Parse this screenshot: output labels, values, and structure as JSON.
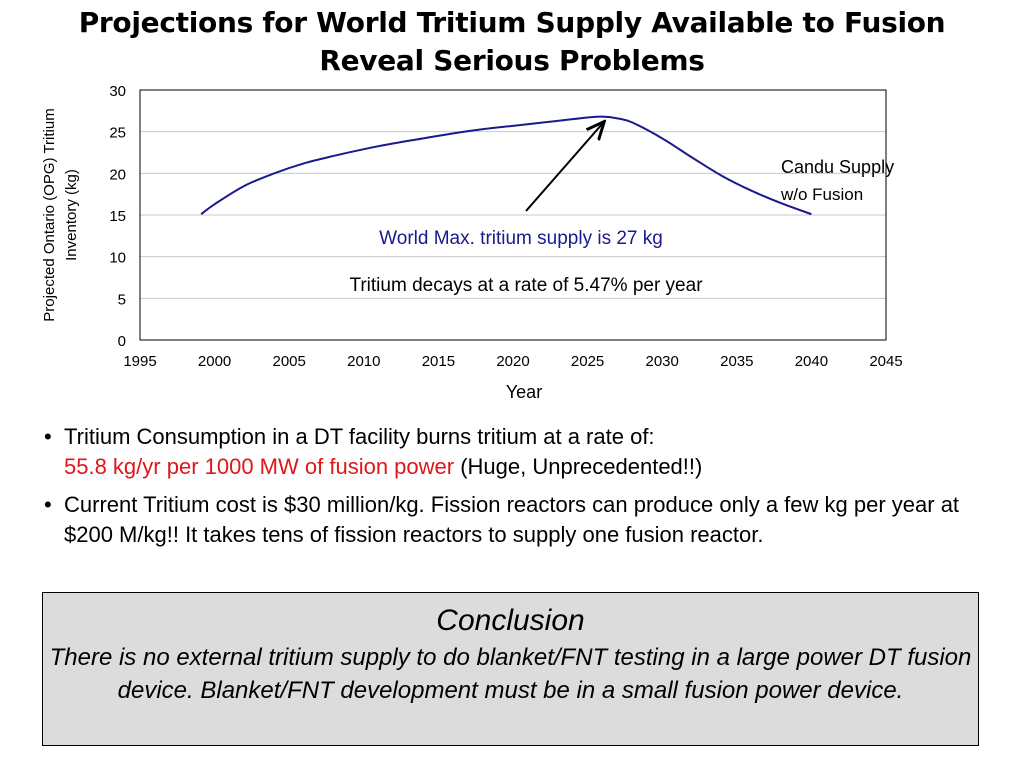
{
  "slide": {
    "title_line1": "Projections for World Tritium Supply Available to Fusion",
    "title_line2": "Reveal Serious Problems"
  },
  "chart_data": {
    "type": "line",
    "ylabel_line1": "Projected Ontario (OPG) Tritium",
    "ylabel_line2": "Inventory (kg)",
    "xlabel": "Year",
    "xlim": [
      1995,
      2045
    ],
    "ylim": [
      0,
      30
    ],
    "x_ticks": [
      1995,
      2000,
      2005,
      2010,
      2015,
      2020,
      2025,
      2030,
      2035,
      2040,
      2045
    ],
    "y_ticks": [
      0,
      5,
      10,
      15,
      20,
      25,
      30
    ],
    "grid": "horizontal",
    "series": [
      {
        "color": "#1a1a8c",
        "x": [
          1999.1,
          2000,
          2002,
          2004,
          2006,
          2008,
          2010,
          2012,
          2014,
          2016,
          2018,
          2020,
          2022,
          2024,
          2025,
          2026,
          2027,
          2028,
          2030,
          2032,
          2034,
          2036,
          2038,
          2040
        ],
        "y": [
          15.1,
          16.3,
          18.5,
          20.0,
          21.2,
          22.1,
          22.9,
          23.6,
          24.2,
          24.8,
          25.3,
          25.7,
          26.1,
          26.5,
          26.7,
          26.8,
          26.6,
          26.1,
          24.2,
          21.9,
          19.7,
          17.9,
          16.4,
          15.1
        ]
      }
    ],
    "annotations": {
      "candu_line1": "Candu Supply",
      "candu_line2": "w/o Fusion",
      "world_max": "World Max. tritium supply is 27 kg",
      "world_max_color": "#1a1a8c",
      "decay": "Tritium decays at a rate of 5.47% per year"
    }
  },
  "bullets": {
    "b1_text": "Tritium Consumption in a DT facility burns tritium at a rate of:",
    "b1_red": "55.8 kg/yr per 1000 MW of fusion power",
    "b1_tail": " (Huge, Unprecedented!!)",
    "b2_text": "Current Tritium cost is $30 million/kg. Fission reactors can produce only a few kg per year at $200 M/kg!! It takes tens of fission reactors to supply one fusion reactor.",
    "bullet_symbol": "•"
  },
  "conclusion": {
    "heading": "Conclusion",
    "body": "There is no external tritium supply to do blanket/FNT testing in a large power DT fusion device. Blanket/FNT development must be in a small fusion power device."
  }
}
